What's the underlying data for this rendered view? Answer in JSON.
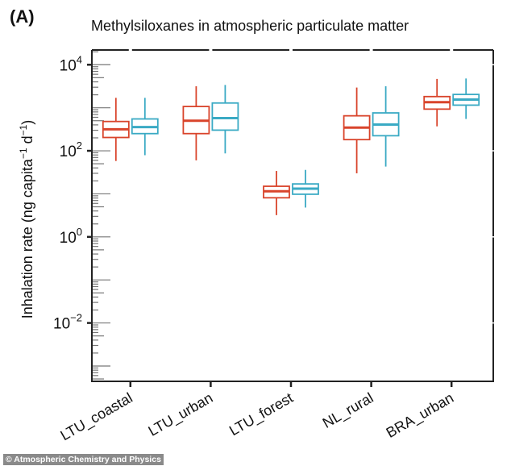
{
  "panel_label": "(A)",
  "watermark": "© Atmospheric Chemistry and Physics",
  "chart_data": {
    "type": "box",
    "title": "Methylsiloxanes in atmospheric particulate matter",
    "ylabel": {
      "main": "Inhalation rate (ng capita",
      "sup1": "−1",
      "mid": " d",
      "sup2": "−1",
      "end": ")"
    },
    "xlabel": "",
    "yscale": "log",
    "ylim": [
      0.00044,
      22000
    ],
    "yticks": [
      {
        "value": 10000,
        "base": "10",
        "exp": "4"
      },
      {
        "value": 100,
        "base": "10",
        "exp": "2"
      },
      {
        "value": 1,
        "base": "10",
        "exp": "0"
      },
      {
        "value": 0.01,
        "base": "10",
        "exp": "−2"
      }
    ],
    "grid": false,
    "legend": "none",
    "categories": [
      "LTU_coastal",
      "LTU_urban",
      "LTU_forest",
      "NL_rural",
      "BRA_urban"
    ],
    "series": [
      {
        "color": "#d9442b",
        "boxes": [
          {
            "whisker_low": 58,
            "q1": 204,
            "median": 316,
            "q3": 480,
            "whisker_high": 1700
          },
          {
            "whisker_low": 60,
            "q1": 251,
            "median": 500,
            "q3": 1070,
            "whisker_high": 3160
          },
          {
            "whisker_low": 3.2,
            "q1": 8.1,
            "median": 11.5,
            "q3": 15,
            "whisker_high": 34
          },
          {
            "whisker_low": 30,
            "q1": 182,
            "median": 347,
            "q3": 650,
            "whisker_high": 2950
          },
          {
            "whisker_low": 370,
            "q1": 930,
            "median": 1350,
            "q3": 1820,
            "whisker_high": 4680
          }
        ]
      },
      {
        "color": "#3aaac4",
        "boxes": [
          {
            "whisker_low": 79,
            "q1": 251,
            "median": 355,
            "q3": 550,
            "whisker_high": 1700
          },
          {
            "whisker_low": 87,
            "q1": 302,
            "median": 575,
            "q3": 1290,
            "whisker_high": 3390
          },
          {
            "whisker_low": 4.8,
            "q1": 9.8,
            "median": 13.2,
            "q3": 17,
            "whisker_high": 36
          },
          {
            "whisker_low": 43,
            "q1": 224,
            "median": 407,
            "q3": 760,
            "whisker_high": 3160
          },
          {
            "whisker_low": 550,
            "q1": 1150,
            "median": 1550,
            "q3": 2040,
            "whisker_high": 4790
          }
        ]
      }
    ]
  }
}
